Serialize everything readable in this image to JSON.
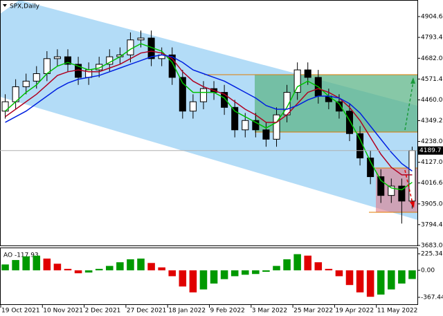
{
  "chart_data": [
    {
      "type": "candlestick",
      "title": "SPX,Daily",
      "categories": [
        "19 Oct 2021",
        null,
        null,
        null,
        "10 Nov 2021",
        null,
        null,
        null,
        "2 Dec 2021",
        null,
        null,
        null,
        "27 Dec 2021",
        null,
        null,
        null,
        "18 Jan 2022",
        null,
        null,
        null,
        "9 Feb 2022",
        null,
        null,
        null,
        "3 Mar 2022",
        null,
        null,
        null,
        "25 Mar 2022",
        null,
        null,
        null,
        "19 Apr 2022",
        null,
        null,
        null,
        "11 May 2022",
        null,
        null,
        null
      ],
      "open": [
        4400,
        4450,
        4530,
        4560,
        4600,
        4680,
        4690,
        4650,
        4580,
        4620,
        4650,
        4690,
        4700,
        4780,
        4790,
        4680,
        4700,
        4580,
        4400,
        4450,
        4520,
        4500,
        4420,
        4300,
        4350,
        4300,
        4250,
        4380,
        4500,
        4620,
        4580,
        4480,
        4450,
        4400,
        4280,
        4150,
        4050,
        3950,
        4000,
        3920
      ],
      "high": [
        4490,
        4570,
        4600,
        4640,
        4720,
        4730,
        4730,
        4690,
        4660,
        4690,
        4730,
        4740,
        4820,
        4830,
        4830,
        4740,
        4740,
        4620,
        4490,
        4560,
        4560,
        4540,
        4460,
        4390,
        4390,
        4340,
        4420,
        4540,
        4660,
        4660,
        4620,
        4520,
        4490,
        4440,
        4320,
        4190,
        4090,
        4040,
        4040,
        4210
      ],
      "low": [
        4360,
        4410,
        4490,
        4520,
        4560,
        4640,
        4610,
        4540,
        4540,
        4580,
        4610,
        4650,
        4660,
        4740,
        4640,
        4640,
        4540,
        4360,
        4360,
        4410,
        4460,
        4380,
        4260,
        4260,
        4260,
        4210,
        4210,
        4340,
        4460,
        4540,
        4440,
        4410,
        4360,
        4240,
        4110,
        4010,
        3910,
        3910,
        3800,
        3880
      ],
      "close": [
        4450,
        4530,
        4560,
        4600,
        4680,
        4690,
        4650,
        4580,
        4620,
        4650,
        4690,
        4700,
        4780,
        4790,
        4680,
        4700,
        4580,
        4400,
        4450,
        4520,
        4500,
        4420,
        4300,
        4350,
        4300,
        4250,
        4380,
        4500,
        4620,
        4580,
        4480,
        4450,
        4400,
        4280,
        4150,
        4050,
        3950,
        4000,
        3920,
        4189.7
      ],
      "series": [
        {
          "color": "#00c000",
          "values": [
            4400,
            4450,
            4500,
            4540,
            4600,
            4640,
            4660,
            4640,
            4620,
            4630,
            4660,
            4690,
            4730,
            4760,
            4740,
            4720,
            4660,
            4550,
            4500,
            4500,
            4500,
            4470,
            4400,
            4370,
            4340,
            4310,
            4340,
            4420,
            4530,
            4560,
            4530,
            4480,
            4440,
            4350,
            4250,
            4130,
            4030,
            3990,
            3980,
            4020
          ]
        },
        {
          "color": "#b00020",
          "values": [
            4370,
            4410,
            4450,
            4490,
            4540,
            4590,
            4610,
            4620,
            4610,
            4610,
            4630,
            4650,
            4680,
            4710,
            4720,
            4710,
            4680,
            4610,
            4560,
            4530,
            4510,
            4490,
            4450,
            4410,
            4380,
            4340,
            4340,
            4380,
            4440,
            4500,
            4520,
            4500,
            4470,
            4420,
            4350,
            4260,
            4170,
            4100,
            4060,
            4060
          ]
        },
        {
          "color": "#0020e0",
          "values": [
            4340,
            4370,
            4400,
            4440,
            4480,
            4520,
            4550,
            4570,
            4580,
            4590,
            4610,
            4630,
            4650,
            4670,
            4690,
            4700,
            4690,
            4660,
            4620,
            4600,
            4580,
            4560,
            4530,
            4500,
            4470,
            4430,
            4410,
            4410,
            4430,
            4460,
            4480,
            4480,
            4470,
            4440,
            4390,
            4320,
            4250,
            4180,
            4120,
            4080
          ]
        }
      ],
      "ylim": [
        3683,
        4993
      ],
      "yticks": [
        4904.6,
        4793.4,
        {
          "value": 4682,
          "label": "4682.0"
        },
        4571.4,
        {
          "value": 4460,
          "label": "4460.0"
        },
        4349.2,
        {
          "value": 4238,
          "label": "4238.0"
        },
        {
          "value": 4127,
          "label": "4127.0"
        },
        4016.6,
        {
          "value": 3905,
          "label": "3905.0"
        },
        3794.4,
        {
          "value": 3683,
          "label": "3683.0"
        }
      ]
    },
    {
      "type": "histogram-oscillator",
      "title": "AO -117.93",
      "values": [
        80,
        140,
        190,
        200,
        160,
        90,
        20,
        -40,
        -30,
        20,
        60,
        110,
        150,
        160,
        100,
        40,
        -80,
        -220,
        -300,
        -260,
        -180,
        -120,
        -80,
        -60,
        -50,
        -20,
        60,
        150,
        220,
        200,
        110,
        20,
        -80,
        -200,
        -300,
        -360,
        -330,
        -260,
        -180,
        -117.93
      ],
      "up_color": "#009900",
      "down_color": "#e00000",
      "ylim": [
        -461.5,
        300.6
      ],
      "yticks": [
        225.34,
        {
          "value": 0,
          "label": "0.00"
        },
        -367.44
      ]
    }
  ]
}
